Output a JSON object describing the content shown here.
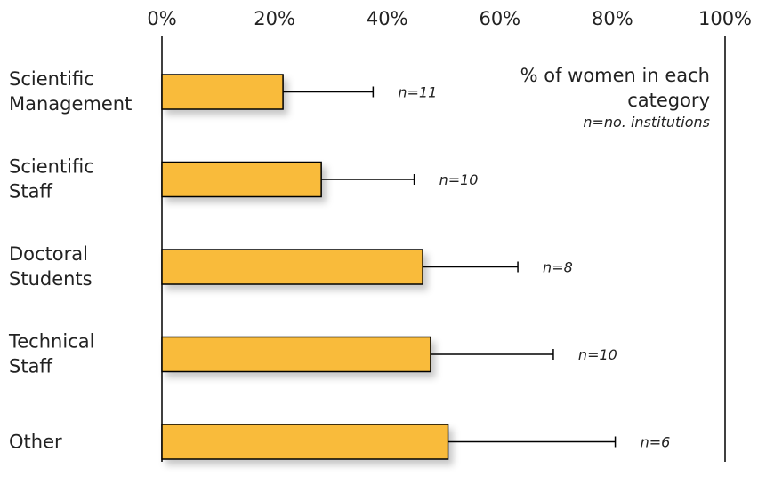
{
  "chart_data": {
    "type": "bar",
    "orientation": "horizontal",
    "categories": [
      [
        "Scientific",
        "Management"
      ],
      [
        "Scientific",
        "Staff"
      ],
      [
        "Doctoral",
        "Students"
      ],
      [
        "Technical",
        "Staff"
      ],
      [
        "Other"
      ]
    ],
    "values": [
      21.5,
      28.3,
      46.3,
      47.7,
      50.8
    ],
    "error_upper": [
      37.5,
      44.8,
      63.2,
      69.5,
      80.5
    ],
    "n_labels": [
      "n=11",
      "n=10",
      "n=8",
      "n=10",
      "n=6"
    ],
    "x_ticks": [
      "0%",
      "20%",
      "40%",
      "60%",
      "80%",
      "100%"
    ],
    "xlim": [
      0,
      100
    ],
    "legend_text": [
      "% of women in each",
      "category"
    ],
    "legend_note": "n=no. institutions",
    "bar_color": "#F9BB3B",
    "grid": false
  }
}
